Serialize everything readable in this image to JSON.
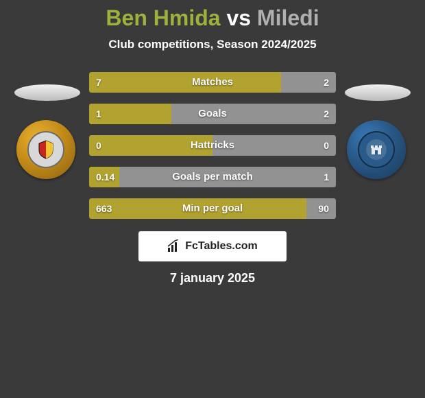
{
  "title": {
    "player1": "Ben Hmida",
    "vs": "vs",
    "player2": "Miledi"
  },
  "subtitle": "Club competitions, Season 2024/2025",
  "colors": {
    "player1": "#b2a22f",
    "player2": "#929292",
    "background": "#3a3a3a",
    "title_p1": "#9db13c",
    "title_vs": "#ffffff",
    "title_p2": "#b0b0b0"
  },
  "bars": [
    {
      "label": "Matches",
      "left_val": "7",
      "right_val": "2",
      "left_pct": 77.8,
      "right_pct": 22.2
    },
    {
      "label": "Goals",
      "left_val": "1",
      "right_val": "2",
      "left_pct": 33.3,
      "right_pct": 66.7
    },
    {
      "label": "Hattricks",
      "left_val": "0",
      "right_val": "0",
      "left_pct": 50,
      "right_pct": 50
    },
    {
      "label": "Goals per match",
      "left_val": "0.14",
      "right_val": "1",
      "left_pct": 12.3,
      "right_pct": 87.7
    },
    {
      "label": "Min per goal",
      "left_val": "663",
      "right_val": "90",
      "left_pct": 88.0,
      "right_pct": 12.0
    }
  ],
  "footer_text": "FcTables.com",
  "date": "7 january 2025"
}
